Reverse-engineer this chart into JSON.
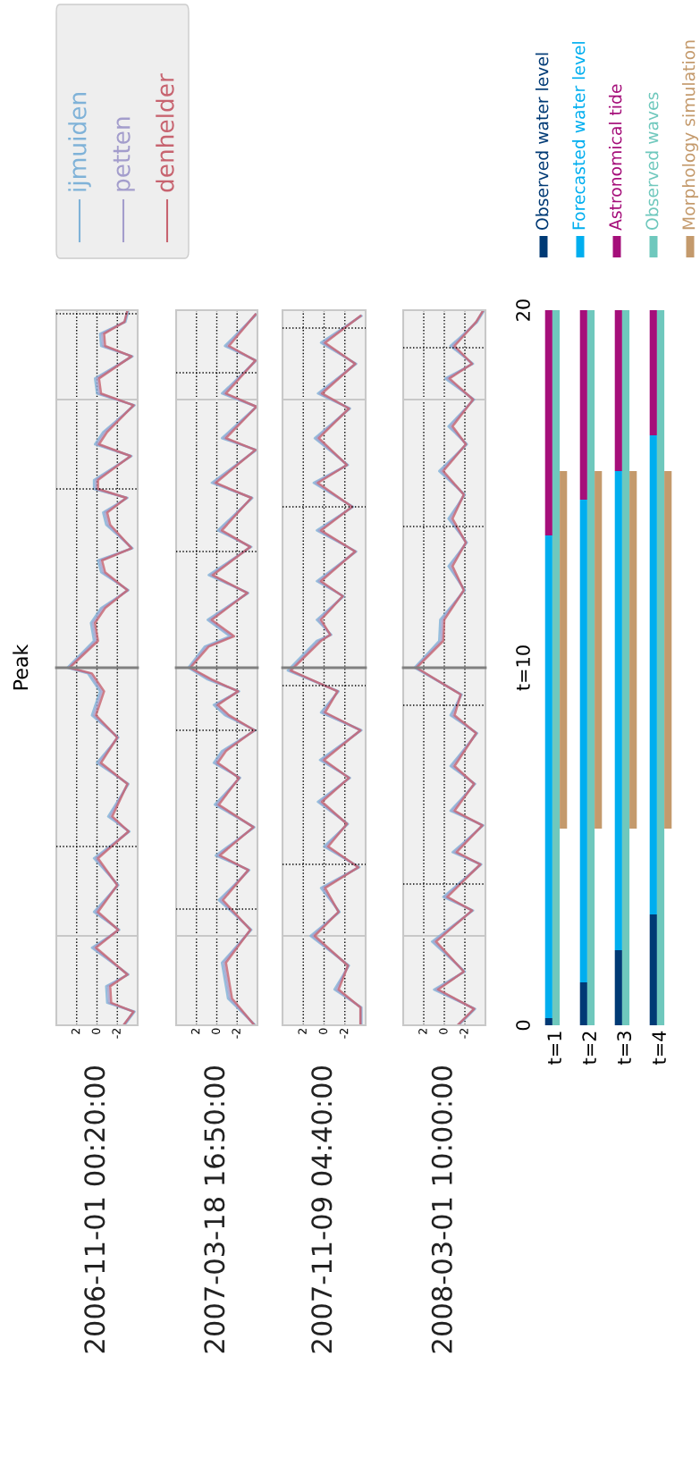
{
  "chart_data": [
    {
      "type": "line",
      "ylabel": "2006-11-01 00:20:00",
      "annotations": [
        "Peak"
      ],
      "legend": "top right",
      "grid": "x",
      "line_style": "solid",
      "tick_labels": "x",
      "ylim": [
        0,
        20
      ],
      "xlim": [
        4,
        -4
      ],
      "xticks": [
        2,
        0,
        -2
      ],
      "ref_lines": [
        {
          "axis": "y",
          "value": 2.5,
          "color": "#c8c8c8",
          "line_style": "solid"
        },
        {
          "axis": "y",
          "value": 17.5,
          "color": "#c8c8c8",
          "line_style": "solid"
        },
        {
          "axis": "y",
          "value": 10,
          "color": "#808080",
          "line_style": "solid"
        },
        {
          "axis": "y",
          "value": 5,
          "color": "#000000",
          "line_style": "dotted"
        },
        {
          "axis": "y",
          "value": 15,
          "color": "#000000",
          "line_style": "dotted"
        },
        {
          "axis": "y",
          "value": 19.9,
          "color": "#000000",
          "line_style": "dotted"
        }
      ],
      "series": [
        {
          "name": "ijmuiden",
          "color": "#7fb2d8",
          "x": [
            -2.7,
            -3.7,
            -1.0,
            -0.9,
            -3.1,
            0.5,
            -2.2,
            0.3,
            -2.1,
            0.3,
            -3.2,
            -1.1,
            -3.1,
            0.0,
            -2.1,
            0.5,
            -0.3,
            0.9,
            2.9,
            0.3,
            0.6,
            -0.4,
            -3.1,
            -0.4,
            -0.1,
            -3.5,
            -0.9,
            -0.6,
            -3.0,
            0.3,
            0.3,
            -3.4,
            0.2,
            -0.6,
            -3.7,
            0.0,
            0.2,
            -3.5,
            -0.4,
            -0.3,
            -2.8,
            -3.1
          ],
          "values": [
            0,
            0.38,
            0.63,
            1.09,
            1.42,
            2.17,
            2.67,
            3.17,
            3.92,
            4.67,
            5.42,
            5.84,
            6.75,
            7.34,
            8.05,
            8.67,
            9.34,
            9.84,
            10,
            10.75,
            11.25,
            11.67,
            12.17,
            12.67,
            13,
            13.34,
            14,
            14.34,
            14.75,
            15,
            15.25,
            15.92,
            16.25,
            16.59,
            17.34,
            17.67,
            18.09,
            18.71,
            19,
            19.34,
            19.67,
            20
          ]
        },
        {
          "name": "petten",
          "color": "#a39dcc",
          "x": [
            -2.6,
            -3.6,
            -1.2,
            -1.1,
            -3.0,
            0.3,
            -2.1,
            0.1,
            -2.0,
            0.1,
            -3.1,
            -1.3,
            -3.0,
            -0.2,
            -2.0,
            0.3,
            -0.5,
            0.7,
            2.8,
            0.1,
            0.4,
            -0.6,
            -3.0,
            -0.6,
            -0.3,
            -3.4,
            -1.1,
            -0.8,
            -2.9,
            0.1,
            0.1,
            -3.3,
            0.0,
            -0.8,
            -3.6,
            -0.2,
            0.0,
            -3.4,
            -0.6,
            -0.5,
            -2.7,
            -3.0
          ],
          "values": [
            0,
            0.38,
            0.63,
            1.09,
            1.42,
            2.17,
            2.67,
            3.17,
            3.92,
            4.67,
            5.42,
            5.84,
            6.75,
            7.34,
            8.05,
            8.67,
            9.34,
            9.84,
            10,
            10.75,
            11.25,
            11.67,
            12.17,
            12.67,
            13,
            13.34,
            14,
            14.34,
            14.75,
            15,
            15.25,
            15.92,
            16.25,
            16.59,
            17.34,
            17.67,
            18.09,
            18.71,
            19,
            19.34,
            19.67,
            20
          ]
        },
        {
          "name": "denhelder",
          "color": "#c7636f",
          "x": [
            -2.6,
            -3.6,
            -1.4,
            -1.3,
            -3.0,
            0.1,
            -2.1,
            -0.1,
            -2.0,
            -0.1,
            -3.1,
            -1.5,
            -3.0,
            -0.4,
            -2.0,
            0.1,
            -0.7,
            0.5,
            2.7,
            -0.1,
            0.2,
            -0.8,
            -3.0,
            -0.8,
            -0.5,
            -3.4,
            -1.3,
            -1.0,
            -2.9,
            -0.1,
            -0.1,
            -3.3,
            -0.2,
            -1.0,
            -3.6,
            -0.4,
            -0.2,
            -3.4,
            -0.8,
            -0.7,
            -2.7,
            -3.0
          ],
          "values": [
            0,
            0.38,
            0.63,
            1.09,
            1.42,
            2.17,
            2.67,
            3.17,
            3.92,
            4.67,
            5.42,
            5.84,
            6.75,
            7.34,
            8.05,
            8.67,
            9.34,
            9.84,
            10,
            10.75,
            11.25,
            11.67,
            12.17,
            12.67,
            13,
            13.34,
            14,
            14.34,
            14.75,
            15,
            15.25,
            15.92,
            16.25,
            16.59,
            17.34,
            17.67,
            18.09,
            18.71,
            19,
            19.34,
            19.67,
            20
          ]
        }
      ]
    },
    {
      "type": "line",
      "ylabel": "2007-03-18 16:50:00",
      "grid": "x",
      "line_style": "solid",
      "tick_labels": "x",
      "ylim": [
        0,
        20
      ],
      "xlim": [
        4,
        -4
      ],
      "xticks": [
        2,
        0,
        -2
      ],
      "ref_lines": [
        {
          "axis": "y",
          "value": 2.5,
          "color": "#c8c8c8",
          "line_style": "solid"
        },
        {
          "axis": "y",
          "value": 17.5,
          "color": "#c8c8c8",
          "line_style": "solid"
        },
        {
          "axis": "y",
          "value": 10,
          "color": "#808080",
          "line_style": "solid"
        },
        {
          "axis": "y",
          "value": 3.25,
          "color": "#000000",
          "line_style": "dotted"
        },
        {
          "axis": "y",
          "value": 8.25,
          "color": "#000000",
          "line_style": "dotted"
        },
        {
          "axis": "y",
          "value": 13.25,
          "color": "#000000",
          "line_style": "dotted"
        },
        {
          "axis": "y",
          "value": 18.25,
          "color": "#000000",
          "line_style": "dotted"
        }
      ],
      "series": [
        {
          "color": "#7fb2d8",
          "x": [
            -3.8,
            -1.1,
            -0.5,
            -3.4,
            -0.2,
            -3.2,
            0.1,
            -3.7,
            0.2,
            -2.3,
            0.3,
            -0.5,
            -3.8,
            -0.8,
            0.3,
            -2.2,
            0.9,
            2.8,
            1.2,
            -1.3,
            0.9,
            -3.1,
            0.8,
            -3.4,
            -0.1,
            -3.5,
            0.5,
            -3.9,
            -0.5,
            -3.9,
            -0.5,
            -3.9,
            -0.8,
            -3.9
          ],
          "values": [
            0,
            0.75,
            1.75,
            2.67,
            3.5,
            4.34,
            4.75,
            5.54,
            6.17,
            6.92,
            7.34,
            7.67,
            8.25,
            8.67,
            8.96,
            9.34,
            9.67,
            10,
            10.59,
            10.88,
            11.34,
            12.09,
            12.59,
            13.38,
            13.84,
            14.75,
            15.17,
            16.09,
            16.42,
            17.3,
            17.67,
            18.59,
            19,
            19.88
          ]
        },
        {
          "color": "#a39dcc",
          "x": [
            -3.7,
            -1.3,
            -0.7,
            -3.3,
            -0.4,
            -3.1,
            -0.1,
            -3.6,
            0.0,
            -2.2,
            0.1,
            -0.7,
            -3.7,
            -1.0,
            0.1,
            -2.1,
            0.7,
            2.7,
            1.0,
            -1.5,
            0.7,
            -3.0,
            0.6,
            -3.3,
            -0.3,
            -3.4,
            0.3,
            -3.8,
            -0.7,
            -3.9,
            -0.7,
            -3.8,
            -1.0,
            -3.8
          ],
          "values": [
            0,
            0.75,
            1.75,
            2.67,
            3.5,
            4.34,
            4.75,
            5.54,
            6.17,
            6.92,
            7.34,
            7.67,
            8.25,
            8.67,
            8.96,
            9.34,
            9.67,
            10,
            10.59,
            10.88,
            11.34,
            12.09,
            12.59,
            13.38,
            13.84,
            14.75,
            15.17,
            16.09,
            16.42,
            17.3,
            17.67,
            18.59,
            19,
            19.88
          ]
        },
        {
          "color": "#c7636f",
          "x": [
            -3.7,
            -1.5,
            -0.9,
            -3.3,
            -0.6,
            -3.1,
            -0.3,
            -3.6,
            -0.2,
            -2.2,
            -0.1,
            -0.9,
            -3.7,
            -1.2,
            -0.1,
            -2.1,
            0.5,
            2.6,
            0.8,
            -1.7,
            0.5,
            -3.0,
            0.4,
            -3.3,
            -0.5,
            -3.4,
            0.1,
            -3.8,
            -0.9,
            -3.9,
            -0.9,
            -3.8,
            -1.2,
            -3.8
          ],
          "values": [
            0,
            0.75,
            1.75,
            2.67,
            3.5,
            4.34,
            4.75,
            5.54,
            6.17,
            6.92,
            7.34,
            7.67,
            8.25,
            8.67,
            8.96,
            9.34,
            9.67,
            10,
            10.59,
            10.88,
            11.34,
            12.09,
            12.59,
            13.38,
            13.84,
            14.75,
            15.17,
            16.09,
            16.42,
            17.3,
            17.67,
            18.59,
            19,
            19.88
          ]
        }
      ]
    },
    {
      "type": "line",
      "ylabel": "2007-11-09 04:40:00",
      "grid": "x",
      "line_style": "solid",
      "tick_labels": "x",
      "ylim": [
        0,
        20
      ],
      "xlim": [
        4,
        -4
      ],
      "xticks": [
        2,
        0,
        -2
      ],
      "ref_lines": [
        {
          "axis": "y",
          "value": 2.5,
          "color": "#c8c8c8",
          "line_style": "solid"
        },
        {
          "axis": "y",
          "value": 17.5,
          "color": "#c8c8c8",
          "line_style": "solid"
        },
        {
          "axis": "y",
          "value": 10,
          "color": "#808080",
          "line_style": "solid"
        },
        {
          "axis": "y",
          "value": 4.5,
          "color": "#000000",
          "line_style": "dotted"
        },
        {
          "axis": "y",
          "value": 9.5,
          "color": "#000000",
          "line_style": "dotted"
        },
        {
          "axis": "y",
          "value": 14.5,
          "color": "#000000",
          "line_style": "dotted"
        },
        {
          "axis": "y",
          "value": 19.5,
          "color": "#000000",
          "line_style": "dotted"
        }
      ],
      "series": [
        {
          "color": "#7fb2d8",
          "x": [
            -3.6,
            -3.6,
            -1.0,
            -2.4,
            1.3,
            -1.5,
            0.3,
            -3.4,
            0.0,
            -2.3,
            0.6,
            -2.5,
            0.4,
            -3.6,
            0.3,
            -1.4,
            3.5,
            0.7,
            -0.7,
            0.7,
            -1.9,
            0.7,
            -3.1,
            0.7,
            -2.8,
            1.0,
            -2.3,
            0.9,
            -2.5,
            0.6,
            -3.1,
            0.3,
            -3.6
          ],
          "values": [
            0,
            0.5,
            1,
            1.67,
            2.5,
            3.17,
            3.84,
            4.42,
            5,
            5.63,
            6.25,
            6.92,
            7.42,
            8.25,
            8.75,
            9.34,
            9.92,
            10.75,
            10.92,
            11.34,
            12,
            12.42,
            13.25,
            13.84,
            14.5,
            15.17,
            15.67,
            16.42,
            17.25,
            17.67,
            18.5,
            19.09,
            19.84
          ]
        },
        {
          "color": "#a39dcc",
          "x": [
            -3.5,
            -3.5,
            -1.2,
            -2.3,
            1.1,
            -1.4,
            0.1,
            -3.3,
            -0.2,
            -2.2,
            0.4,
            -2.4,
            0.2,
            -3.5,
            0.1,
            -1.3,
            3.3,
            0.5,
            -0.6,
            0.5,
            -1.8,
            0.5,
            -3.0,
            0.5,
            -2.7,
            0.8,
            -2.2,
            0.7,
            -2.4,
            0.4,
            -3.0,
            0.1,
            -3.5
          ],
          "values": [
            0,
            0.5,
            1,
            1.67,
            2.5,
            3.17,
            3.84,
            4.42,
            5,
            5.63,
            6.25,
            6.92,
            7.42,
            8.25,
            8.75,
            9.34,
            9.92,
            10.75,
            10.92,
            11.34,
            12,
            12.42,
            13.25,
            13.84,
            14.5,
            15.17,
            15.67,
            16.42,
            17.25,
            17.67,
            18.5,
            19.09,
            19.84
          ]
        },
        {
          "color": "#c7636f",
          "x": [
            -3.5,
            -3.5,
            -1.4,
            -2.3,
            0.9,
            -1.4,
            -0.1,
            -3.3,
            -0.4,
            -2.2,
            0.2,
            -2.4,
            0.0,
            -3.5,
            -0.1,
            -1.3,
            3.2,
            0.3,
            -0.6,
            0.3,
            -1.8,
            0.3,
            -3.0,
            0.3,
            -2.7,
            0.6,
            -2.2,
            0.5,
            -2.4,
            0.2,
            -3.0,
            -0.1,
            -3.5
          ],
          "values": [
            0,
            0.5,
            1,
            1.67,
            2.5,
            3.17,
            3.84,
            4.42,
            5,
            5.63,
            6.25,
            6.92,
            7.42,
            8.25,
            8.75,
            9.34,
            9.92,
            10.75,
            10.92,
            11.34,
            12,
            12.42,
            13.25,
            13.84,
            14.5,
            15.17,
            15.67,
            16.42,
            17.25,
            17.67,
            18.5,
            19.09,
            19.84
          ]
        }
      ]
    },
    {
      "type": "line",
      "ylabel": "2008-03-01 10:00:00",
      "grid": "x",
      "line_style": "solid",
      "tick_labels": "x",
      "ylim": [
        0,
        20
      ],
      "xlim": [
        4,
        -4
      ],
      "xticks": [
        2,
        0,
        -2
      ],
      "ref_lines": [
        {
          "axis": "y",
          "value": 2.5,
          "color": "#c8c8c8",
          "line_style": "solid"
        },
        {
          "axis": "y",
          "value": 17.5,
          "color": "#c8c8c8",
          "line_style": "solid"
        },
        {
          "axis": "y",
          "value": 10,
          "color": "#808080",
          "line_style": "solid"
        },
        {
          "axis": "y",
          "value": 3.95,
          "color": "#000000",
          "line_style": "dotted"
        },
        {
          "axis": "y",
          "value": 8.95,
          "color": "#000000",
          "line_style": "dotted"
        },
        {
          "axis": "y",
          "value": 13.95,
          "color": "#000000",
          "line_style": "dotted"
        },
        {
          "axis": "y",
          "value": 18.95,
          "color": "#000000",
          "line_style": "dotted"
        }
      ],
      "series": [
        {
          "color": "#7fb2d8",
          "x": [
            -1.4,
            -3.0,
            1.0,
            -2.0,
            1.2,
            -2.8,
            0.1,
            -3.6,
            -0.8,
            -3.8,
            -0.6,
            -3.0,
            -0.6,
            -3.2,
            -0.6,
            -1.7,
            2.9,
            0.5,
            0.4,
            -2.0,
            -0.4,
            -2.2,
            -0.4,
            -2.0,
            0.5,
            -2.2,
            -0.4,
            -2.9,
            -0.1,
            -2.8,
            -0.6,
            -3.2,
            -3.9
          ],
          "values": [
            0,
            0.46,
            1,
            1.5,
            2.34,
            3.21,
            3.59,
            4.5,
            4.84,
            5.59,
            6,
            6.75,
            7.25,
            8.17,
            8.67,
            9.25,
            10,
            10.75,
            11.34,
            12.17,
            12.84,
            13.5,
            14.17,
            14.84,
            15.5,
            16.25,
            16.75,
            17.5,
            18.09,
            18.5,
            19,
            19.67,
            20
          ]
        },
        {
          "color": "#a39dcc",
          "x": [
            -1.3,
            -2.9,
            0.8,
            -1.9,
            1.0,
            -2.7,
            -0.1,
            -3.5,
            -1.0,
            -3.7,
            -0.8,
            -2.9,
            -0.8,
            -3.1,
            -0.8,
            -1.6,
            2.8,
            0.3,
            0.2,
            -1.9,
            -0.6,
            -2.1,
            -0.6,
            -1.9,
            0.3,
            -2.1,
            -0.6,
            -2.8,
            -0.3,
            -2.7,
            -0.8,
            -3.1,
            -3.8
          ],
          "values": [
            0,
            0.46,
            1,
            1.5,
            2.34,
            3.21,
            3.59,
            4.5,
            4.84,
            5.59,
            6,
            6.75,
            7.25,
            8.17,
            8.67,
            9.25,
            10,
            10.75,
            11.34,
            12.17,
            12.84,
            13.5,
            14.17,
            14.84,
            15.5,
            16.25,
            16.75,
            17.5,
            18.09,
            18.5,
            19,
            19.67,
            20
          ]
        },
        {
          "color": "#c7636f",
          "x": [
            -1.3,
            -2.9,
            0.6,
            -1.9,
            0.8,
            -2.7,
            -0.3,
            -3.5,
            -1.2,
            -3.7,
            -1.0,
            -2.9,
            -1.0,
            -3.1,
            -1.0,
            -1.6,
            2.7,
            0.1,
            0.0,
            -1.9,
            -0.8,
            -2.1,
            -0.8,
            -1.9,
            0.1,
            -2.1,
            -0.8,
            -2.8,
            -0.5,
            -2.7,
            -1.0,
            -3.1,
            -3.8
          ],
          "values": [
            0,
            0.46,
            1,
            1.5,
            2.34,
            3.21,
            3.59,
            4.5,
            4.84,
            5.59,
            6,
            6.75,
            7.25,
            8.17,
            8.67,
            9.25,
            10,
            10.75,
            11.34,
            12.17,
            12.84,
            13.5,
            14.17,
            14.84,
            15.5,
            16.25,
            16.75,
            17.5,
            18.09,
            18.5,
            19,
            19.67,
            20
          ]
        }
      ]
    },
    {
      "type": "bar",
      "legend": "top right",
      "categories": [
        "t=1",
        "t=2",
        "t=3",
        "t=4"
      ],
      "ylim": [
        0,
        20
      ],
      "yticks": [
        0,
        {
          "value": 10,
          "label": "t=10"
        },
        20
      ],
      "series": [
        {
          "name": "Observed water level",
          "color": "#003a75",
          "base": [
            0,
            0,
            0,
            0
          ],
          "values": [
            0.2,
            1.2,
            2.1,
            3.1
          ]
        },
        {
          "name": "Forecasted water level",
          "color": "#00aeef",
          "base": [
            0.2,
            1.2,
            2.1,
            3.1
          ],
          "values": [
            13.5,
            13.5,
            13.4,
            13.4
          ]
        },
        {
          "name": "Astronomical tide",
          "color": "#a50f7a",
          "base": [
            13.7,
            14.7,
            15.5,
            16.5
          ],
          "values": [
            6.3,
            5.3,
            4.5,
            3.5
          ]
        },
        {
          "name": "Observed waves",
          "color": "#6fc8bd",
          "base": [
            0,
            0,
            0,
            0
          ],
          "values": [
            20,
            20,
            20,
            20
          ]
        },
        {
          "name": "Morphology simulation",
          "color": "#c49a6c",
          "base": [
            5.5,
            5.5,
            5.5,
            5.5
          ],
          "values": [
            10,
            10,
            10,
            10
          ]
        }
      ]
    }
  ]
}
